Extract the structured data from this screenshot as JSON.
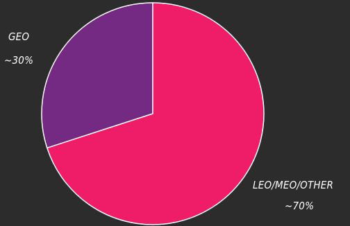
{
  "chart_data": {
    "type": "pie",
    "slices": [
      {
        "label": "GEO",
        "value_label": "~30%",
        "value": 30,
        "color": "#742a83"
      },
      {
        "label": "LEO/MEO/OTHER",
        "value_label": "~70%",
        "value": 70,
        "color": "#ef1c68"
      }
    ],
    "start_angle_deg": 0,
    "direction": "counterclockwise",
    "slice_border_color": "#ffffff",
    "background": "#2c2c2c",
    "legend": "none"
  }
}
